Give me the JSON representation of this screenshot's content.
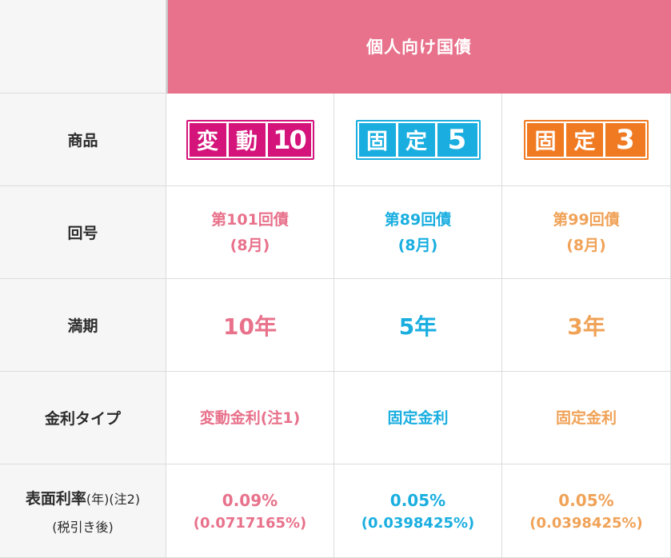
{
  "header": {
    "title": "個人向け国債"
  },
  "row_labels": {
    "product": "商品",
    "issue": "回号",
    "maturity": "満期",
    "rate_type": "金利タイプ",
    "coupon_main": "表面利率",
    "coupon_year": "(年)(注2)",
    "coupon_sub": "(税引き後)"
  },
  "products": [
    {
      "logo": [
        "変",
        "動",
        "10"
      ],
      "issue_line1": "第101回債",
      "issue_line2": "(8月)",
      "maturity": "10年",
      "rate_type": "変動金利(注1)",
      "rate": "0.09%",
      "rate_after_tax": "(0.0717165%)"
    },
    {
      "logo": [
        "固",
        "定",
        "5"
      ],
      "issue_line1": "第89回債",
      "issue_line2": "(8月)",
      "maturity": "5年",
      "rate_type": "固定金利",
      "rate": "0.05%",
      "rate_after_tax": "(0.0398425%)"
    },
    {
      "logo": [
        "固",
        "定",
        "3"
      ],
      "issue_line1": "第99回債",
      "issue_line2": "(8月)",
      "maturity": "3年",
      "rate_type": "固定金利",
      "rate": "0.05%",
      "rate_after_tax": "(0.0398425%)"
    }
  ],
  "colors": {
    "header_bg": "#e8718b",
    "pink_text": "#e8718b",
    "blue_text": "#1aaee0",
    "orange_text": "#f0a257",
    "logo_magenta": "#d4147b",
    "logo_blue": "#1aaee0",
    "logo_orange": "#f07a22",
    "label_bg": "#f6f6f6"
  }
}
